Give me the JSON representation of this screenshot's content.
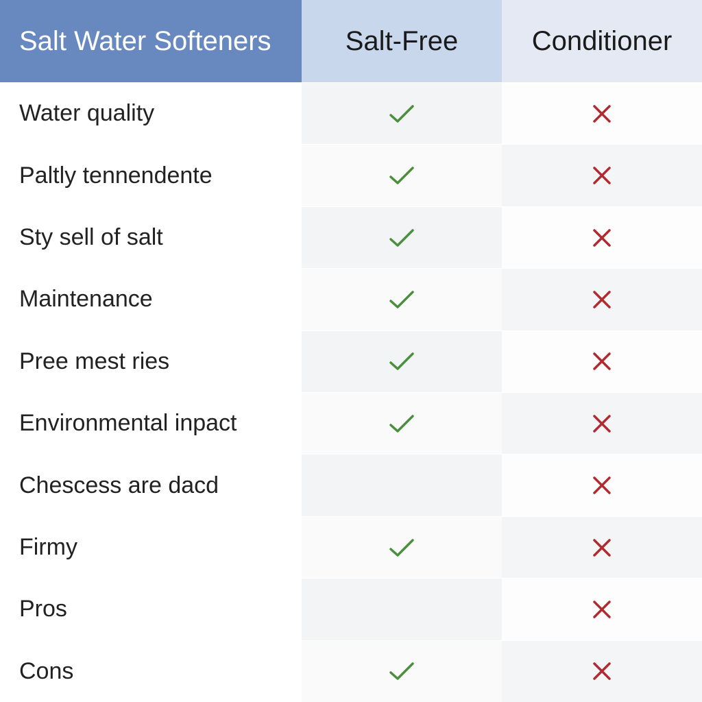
{
  "type": "table",
  "columns": [
    {
      "label": "Salt Water  Softeners",
      "bg": "#6889bf",
      "fg": "#ffffff",
      "align": "left",
      "fontsize": 40,
      "weight": 500
    },
    {
      "label": "Salt-Free",
      "bg": "#c9d7ec",
      "fg": "#1a1a1a",
      "align": "center",
      "fontsize": 40,
      "weight": 400
    },
    {
      "label": "Conditioner",
      "bg": "#e5e9f3",
      "fg": "#1a1a1a",
      "align": "center",
      "fontsize": 40,
      "weight": 400
    }
  ],
  "rows": [
    {
      "label": "Water quality",
      "salt_free": "check",
      "conditioner": "cross"
    },
    {
      "label": "Paltly tennendente",
      "salt_free": "check",
      "conditioner": "cross"
    },
    {
      "label": "Sty sell of salt",
      "salt_free": "check",
      "conditioner": "cross"
    },
    {
      "label": "Maintenance",
      "salt_free": "check",
      "conditioner": "cross"
    },
    {
      "label": "Pree mest ries",
      "salt_free": "check",
      "conditioner": "cross"
    },
    {
      "label": "Environmental inpact",
      "salt_free": "check",
      "conditioner": "cross"
    },
    {
      "label": "Chescess are dacd",
      "salt_free": "empty",
      "conditioner": "cross"
    },
    {
      "label": "Firmy",
      "salt_free": "check",
      "conditioner": "cross"
    },
    {
      "label": "Pros",
      "salt_free": "empty",
      "conditioner": "cross"
    },
    {
      "label": "Cons",
      "salt_free": "check",
      "conditioner": "cross"
    }
  ],
  "styling": {
    "label_bg": "#ffffff",
    "col2_bg_odd": "#f3f4f6",
    "col2_bg_even": "#fafafa",
    "col3_bg_odd": "#fdfdfd",
    "col3_bg_even": "#f4f5f7",
    "row_border_color": "#ffffff",
    "label_fontsize": 34,
    "label_color": "#222222",
    "check_color": "#4a8f3c",
    "cross_color": "#b02a30",
    "mark_size": 34,
    "mark_stroke_width": 3.5
  }
}
